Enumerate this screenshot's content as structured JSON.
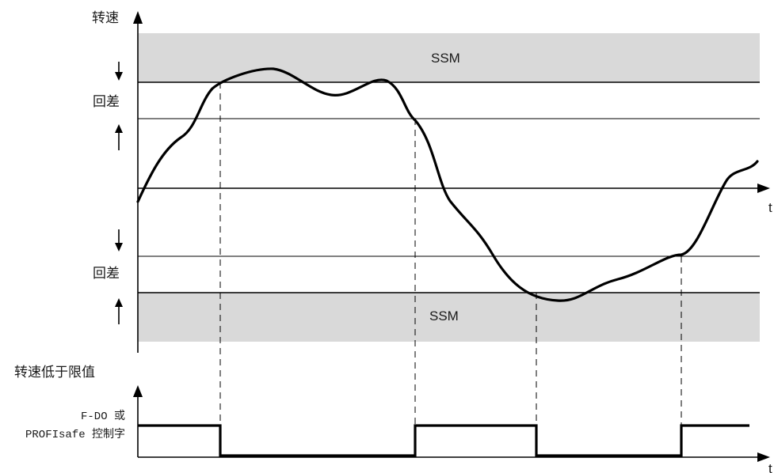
{
  "labels": {
    "speed_axis": "转速",
    "hysteresis_upper": "回差",
    "hysteresis_lower": "回差",
    "band_upper": "SSM",
    "band_lower": "SSM",
    "signal_title": "转速低于限值",
    "output_line1": "F-DO 或",
    "output_line2": "PROFIsafe 控制字",
    "time_axis_speed": "t",
    "time_axis_signal": "t"
  },
  "colors": {
    "band_fill": "#d9d9d9",
    "line": "#000000"
  }
}
